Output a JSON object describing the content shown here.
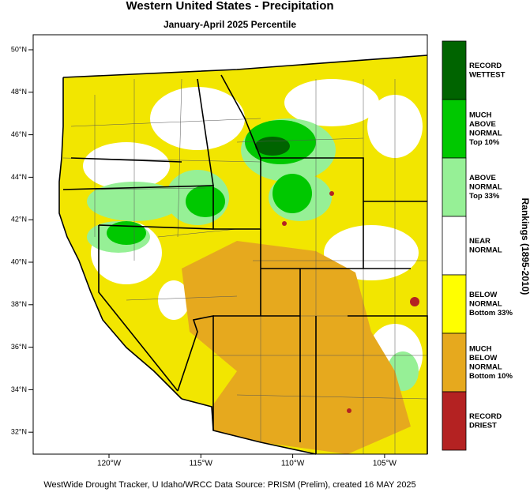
{
  "header": {
    "title": "Western United States - Precipitation",
    "subtitle": "January-April 2025 Percentile"
  },
  "map": {
    "lat_labels": [
      "50°N",
      "48°N",
      "46°N",
      "44°N",
      "42°N",
      "40°N",
      "38°N",
      "36°N",
      "34°N",
      "32°N"
    ],
    "lon_labels": [
      "120°W",
      "115°W",
      "110°W",
      "105°W"
    ]
  },
  "legend": {
    "axis_title": "Rankings (1895-2010)",
    "items": [
      {
        "color": "#006400",
        "lines": [
          "RECORD",
          "WETTEST"
        ]
      },
      {
        "color": "#00c800",
        "lines": [
          "MUCH",
          "ABOVE",
          "NORMAL",
          "Top 10%"
        ]
      },
      {
        "color": "#96f096",
        "lines": [
          "ABOVE",
          "NORMAL",
          "Top 33%"
        ]
      },
      {
        "color": "#ffffff",
        "lines": [
          "NEAR",
          "NORMAL"
        ]
      },
      {
        "color": "#ffff00",
        "lines": [
          "BELOW",
          "NORMAL",
          "Bottom 33%"
        ]
      },
      {
        "color": "#e6a91e",
        "lines": [
          "MUCH",
          "BELOW",
          "NORMAL",
          "Bottom 10%"
        ]
      },
      {
        "color": "#b42222",
        "lines": [
          "RECORD",
          "DRIEST"
        ]
      }
    ]
  },
  "footer": "WestWide Drought Tracker, U Idaho/WRCC Data Source: PRISM (Prelim), created 16 MAY 2025"
}
